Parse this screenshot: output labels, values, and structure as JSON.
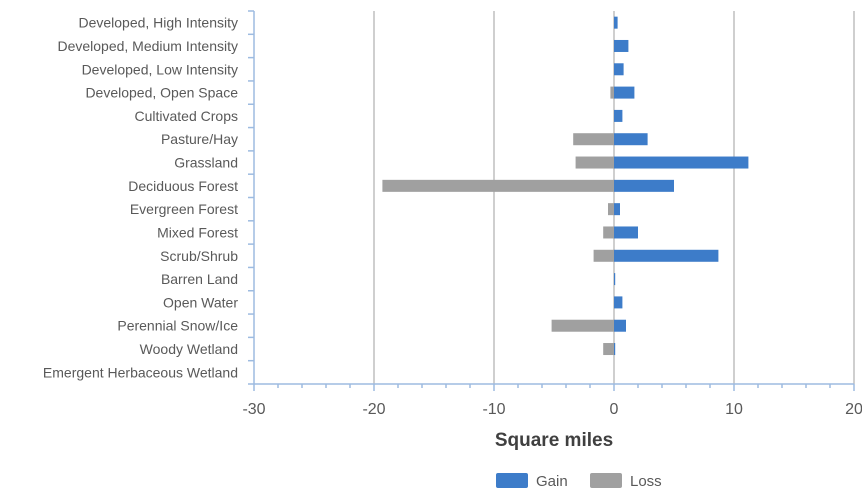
{
  "chart_data": {
    "type": "bar",
    "orientation": "horizontal",
    "title": "",
    "xlabel": "Square miles",
    "ylabel": "",
    "xlim": [
      -30,
      20
    ],
    "xticks": [
      -30,
      -20,
      -10,
      0,
      10,
      20
    ],
    "grid": true,
    "legend_position": "bottom",
    "categories": [
      "Developed, High Intensity",
      "Developed, Medium Intensity",
      "Developed, Low Intensity",
      "Developed, Open Space",
      "Cultivated Crops",
      "Pasture/Hay",
      "Grassland",
      "Deciduous Forest",
      "Evergreen Forest",
      "Mixed Forest",
      "Scrub/Shrub",
      "Barren Land",
      "Open Water",
      "Perennial Snow/Ice",
      "Woody Wetland",
      "Emergent Herbaceous Wetland"
    ],
    "series": [
      {
        "name": "Gain",
        "color": "#3d7cc9",
        "values": [
          0.3,
          1.2,
          0.8,
          1.7,
          0.7,
          2.8,
          11.2,
          5.0,
          0.5,
          2.0,
          8.7,
          0.1,
          0.7,
          1.0,
          0.1,
          0
        ]
      },
      {
        "name": "Loss",
        "color": "#a0a0a0",
        "values": [
          0,
          0,
          0,
          -0.3,
          0,
          -3.4,
          -3.2,
          -19.3,
          -0.5,
          -0.9,
          -1.7,
          0,
          0,
          -5.2,
          -0.9,
          0
        ]
      }
    ]
  }
}
